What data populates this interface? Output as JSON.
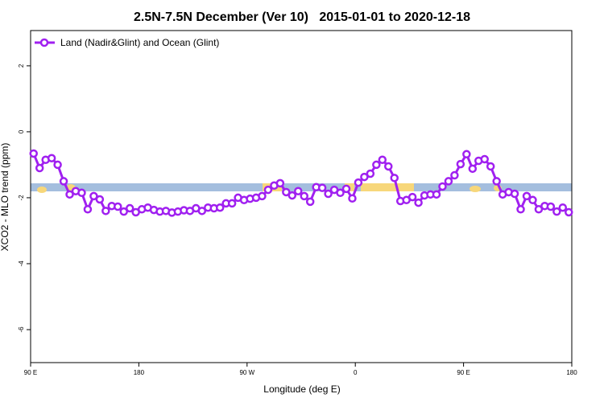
{
  "chart_data": {
    "type": "line",
    "title": "2.5N-7.5N December (Ver 10)   2015-01-01 to 2020-12-18",
    "xlabel": "Longitude (deg E)",
    "ylabel": "XCO2 - MLO trend (ppm)",
    "x": [
      92.5,
      97.5,
      102.5,
      107.5,
      112.5,
      117.5,
      122.5,
      127.5,
      132.5,
      137.5,
      142.5,
      147.5,
      152.5,
      157.5,
      162.5,
      167.5,
      172.5,
      177.5,
      182.5,
      187.5,
      192.5,
      197.5,
      202.5,
      207.5,
      212.5,
      217.5,
      222.5,
      227.5,
      232.5,
      237.5,
      242.5,
      247.5,
      252.5,
      257.5,
      262.5,
      267.5,
      272.5,
      277.5,
      282.5,
      287.5,
      292.5,
      297.5,
      302.5,
      307.5,
      312.5,
      317.5,
      322.5,
      327.5,
      332.5,
      337.5,
      342.5,
      347.5,
      352.5,
      357.5,
      362.5,
      367.5,
      372.5,
      377.5,
      382.5,
      387.5,
      392.5,
      397.5,
      402.5,
      407.5,
      412.5,
      417.5,
      422.5,
      427.5,
      432.5,
      437.5,
      442.5,
      447.5,
      452.5,
      457.5,
      462.5,
      467.5,
      472.5,
      477.5,
      482.5,
      487.5,
      492.5,
      497.5,
      502.5,
      507.5,
      512.5,
      517.5,
      522.5,
      527.5,
      532.5,
      537.5
    ],
    "series": [
      {
        "name": "Land (Nadir&Glint) and Ocean (Glint)",
        "color": "#a020f0",
        "values": [
          -0.66,
          -1.1,
          -0.85,
          -0.8,
          -1.0,
          -1.5,
          -1.9,
          -1.8,
          -1.85,
          -2.35,
          -1.95,
          -2.05,
          -2.4,
          -2.25,
          -2.27,
          -2.42,
          -2.32,
          -2.44,
          -2.35,
          -2.3,
          -2.37,
          -2.42,
          -2.4,
          -2.45,
          -2.42,
          -2.38,
          -2.4,
          -2.32,
          -2.4,
          -2.3,
          -2.32,
          -2.3,
          -2.17,
          -2.17,
          -2.0,
          -2.07,
          -2.03,
          -2.0,
          -1.95,
          -1.76,
          -1.63,
          -1.56,
          -1.83,
          -1.93,
          -1.8,
          -1.95,
          -2.12,
          -1.68,
          -1.7,
          -1.88,
          -1.76,
          -1.85,
          -1.73,
          -2.02,
          -1.54,
          -1.37,
          -1.27,
          -1.0,
          -0.85,
          -1.05,
          -1.4,
          -2.1,
          -2.07,
          -1.98,
          -2.15,
          -1.93,
          -1.9,
          -1.9,
          -1.66,
          -1.5,
          -1.32,
          -0.98,
          -0.68,
          -1.12,
          -0.88,
          -0.83,
          -1.05,
          -1.5,
          -1.9,
          -1.83,
          -1.88,
          -2.35,
          -1.95,
          -2.07,
          -2.35,
          -2.25,
          -2.27,
          -2.42,
          -2.3,
          -2.44
        ]
      }
    ],
    "xlim": [
      90,
      540
    ],
    "xticks": [
      {
        "value": 90,
        "label": "90 E"
      },
      {
        "value": 180,
        "label": "180"
      },
      {
        "value": 270,
        "label": "90 W"
      },
      {
        "value": 360,
        "label": "0"
      },
      {
        "value": 450,
        "label": "90 E"
      },
      {
        "value": 540,
        "label": "180"
      }
    ],
    "ylim": [
      -7,
      3.07
    ],
    "yticks": [
      2,
      0,
      -2,
      -4,
      -6
    ],
    "legend": "top-left"
  }
}
